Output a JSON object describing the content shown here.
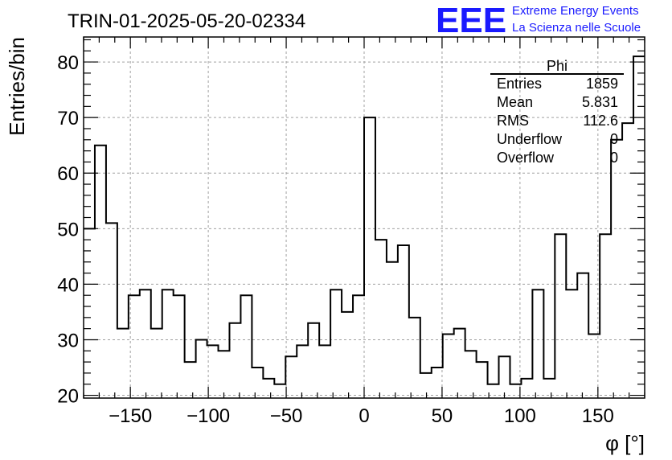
{
  "chart_data": {
    "type": "histogram",
    "title": "TRIN-01-2025-05-20-02334",
    "xlabel": "φ [°]",
    "ylabel": "Entries/bin",
    "xlim": [
      -180,
      180
    ],
    "ylim": [
      19.5,
      84.5
    ],
    "grid": true,
    "x_ticks": [
      -150,
      -100,
      -50,
      0,
      50,
      100,
      150
    ],
    "y_ticks": [
      20,
      30,
      40,
      50,
      60,
      70,
      80
    ],
    "bin_edges_start": -180,
    "bin_width": 7.2,
    "values": [
      50,
      65,
      51,
      32,
      38,
      39,
      32,
      39,
      38,
      26,
      30,
      29,
      28,
      33,
      38,
      25,
      23,
      22,
      27,
      29,
      33,
      29,
      39,
      35,
      38,
      70,
      48,
      44,
      47,
      34,
      24,
      25,
      31,
      32,
      28,
      26,
      22,
      27,
      22,
      23,
      39,
      23,
      49,
      39,
      42,
      31,
      49,
      66,
      69,
      81
    ],
    "stats_box": {
      "title": "Phi",
      "rows": [
        {
          "label": "Entries",
          "value": "1859"
        },
        {
          "label": "Mean",
          "value": "5.831"
        },
        {
          "label": "RMS",
          "value": "112.6"
        },
        {
          "label": "Underflow",
          "value": "0"
        },
        {
          "label": "Overflow",
          "value": "0"
        }
      ]
    }
  },
  "logo": {
    "mark": "EEE",
    "line1": "Extreme Energy Events",
    "line2": "La Scienza nelle Scuole"
  },
  "colors": {
    "line": "#000000",
    "grid": "#a0a0a0",
    "logo": "#1a1aff"
  }
}
